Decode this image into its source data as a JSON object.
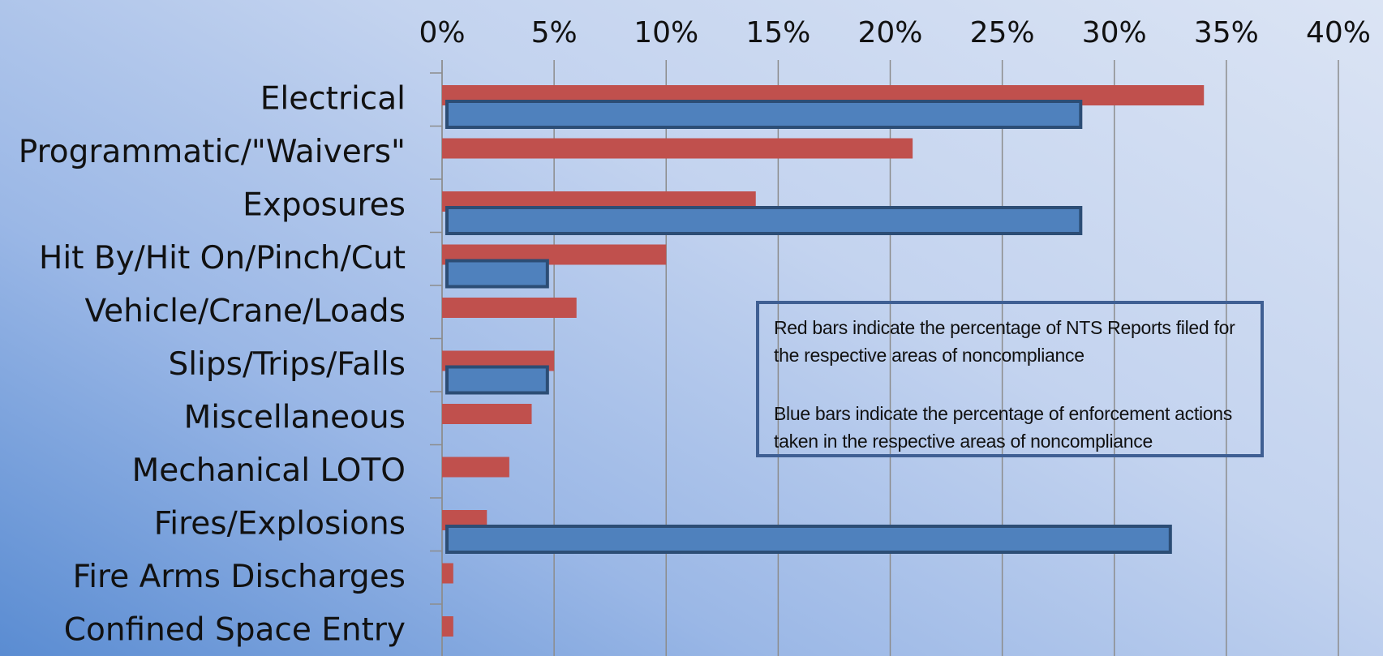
{
  "chart_data": {
    "type": "bar",
    "orientation": "horizontal",
    "title": "",
    "xlabel": "",
    "ylabel": "",
    "xlim": [
      0,
      40
    ],
    "x_ticks": [
      "0%",
      "5%",
      "10%",
      "15%",
      "20%",
      "25%",
      "30%",
      "35%",
      "40%"
    ],
    "x_axis_position": "top",
    "grid": true,
    "categories": [
      "Electrical",
      "Programmatic/\"Waivers\"",
      "Exposures",
      "Hit By/Hit On/Pinch/Cut",
      "Vehicle/Crane/Loads",
      "Slips/Trips/Falls",
      "Miscellaneous",
      "Mechanical LOTO",
      "Fires/Explosions",
      "Fire Arms Discharges",
      "Confined Space Entry"
    ],
    "series": [
      {
        "color": "#c0504d",
        "values": [
          34,
          21,
          14,
          10,
          6,
          5,
          4,
          3,
          2,
          0.5,
          0.5
        ]
      },
      {
        "color": "#4f81bd",
        "border_color": "#2c4d75",
        "values": [
          28.5,
          0,
          28.5,
          4.7,
          0,
          4.7,
          0,
          0,
          32.5,
          0,
          0
        ]
      }
    ],
    "annotation": [
      "Red bars indicate the percentage of NTS Reports filed for the respective areas of noncompliance",
      "Blue bars indicate the percentage of enforcement actions taken in the respective areas of noncompliance"
    ]
  }
}
